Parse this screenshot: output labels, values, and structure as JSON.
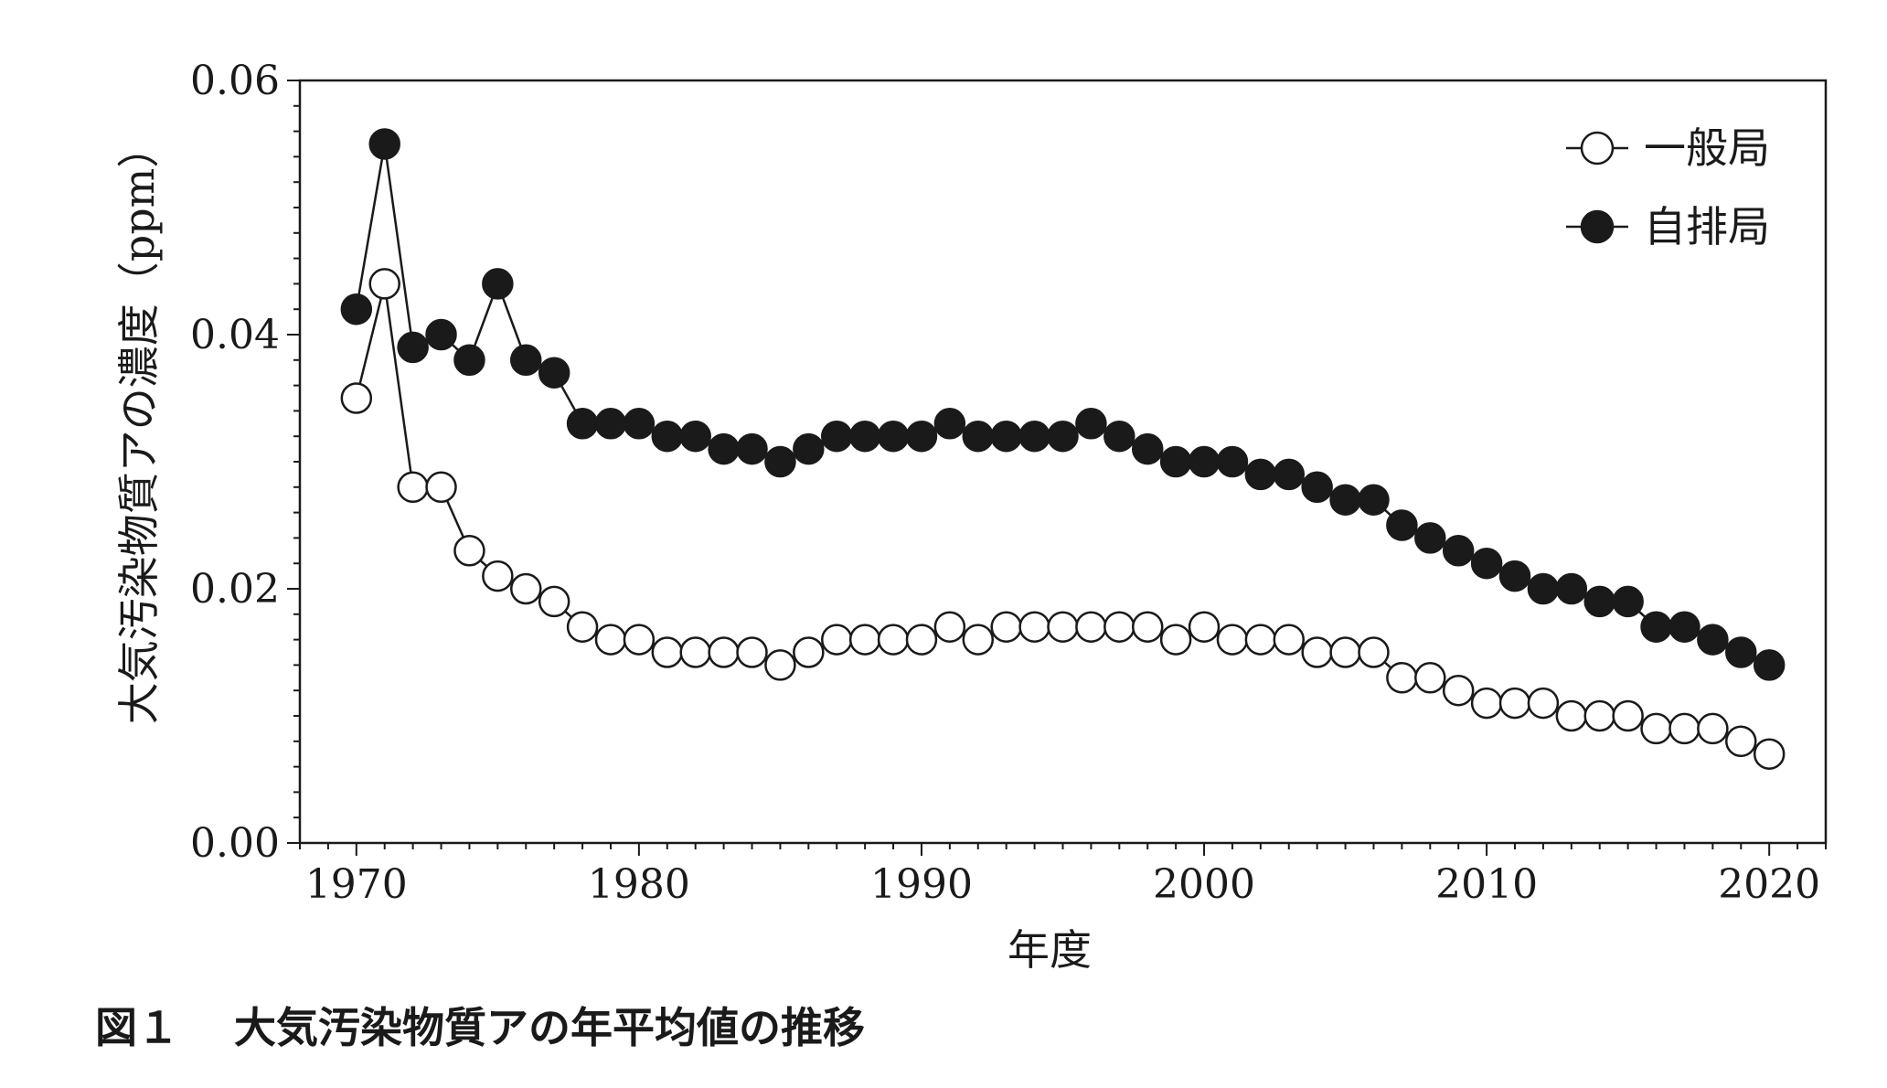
{
  "chart_data": {
    "type": "line",
    "xlabel": "年度",
    "ylabel": "大気汚染物質アの濃度（ppm）",
    "xlim": [
      1968,
      2022
    ],
    "ylim": [
      0.0,
      0.06
    ],
    "x_ticks": [
      1970,
      1980,
      1990,
      2000,
      2010,
      2020
    ],
    "y_ticks": [
      "0.00",
      "0.02",
      "0.04",
      "0.06"
    ],
    "grid": false,
    "legend_position": "top-right",
    "x": [
      1970,
      1971,
      1972,
      1973,
      1974,
      1975,
      1976,
      1977,
      1978,
      1979,
      1980,
      1981,
      1982,
      1983,
      1984,
      1985,
      1986,
      1987,
      1988,
      1989,
      1990,
      1991,
      1992,
      1993,
      1994,
      1995,
      1996,
      1997,
      1998,
      1999,
      2000,
      2001,
      2002,
      2003,
      2004,
      2005,
      2006,
      2007,
      2008,
      2009,
      2010,
      2011,
      2012,
      2013,
      2014,
      2015,
      2016,
      2017,
      2018,
      2019,
      2020
    ],
    "series": [
      {
        "name": "一般局",
        "marker": "open-circle",
        "color": "#1a1a1a",
        "fill": "#ffffff",
        "values": [
          0.035,
          0.044,
          0.028,
          0.028,
          0.023,
          0.021,
          0.02,
          0.019,
          0.017,
          0.016,
          0.016,
          0.015,
          0.015,
          0.015,
          0.015,
          0.014,
          0.015,
          0.016,
          0.016,
          0.016,
          0.016,
          0.017,
          0.016,
          0.017,
          0.017,
          0.017,
          0.017,
          0.017,
          0.017,
          0.016,
          0.017,
          0.016,
          0.016,
          0.016,
          0.015,
          0.015,
          0.015,
          0.013,
          0.013,
          0.012,
          0.011,
          0.011,
          0.011,
          0.01,
          0.01,
          0.01,
          0.009,
          0.009,
          0.009,
          0.008,
          0.007
        ]
      },
      {
        "name": "自排局",
        "marker": "filled-circle",
        "color": "#1a1a1a",
        "fill": "#1a1a1a",
        "values": [
          0.042,
          0.055,
          0.039,
          0.04,
          0.038,
          0.044,
          0.038,
          0.037,
          0.033,
          0.033,
          0.033,
          0.032,
          0.032,
          0.031,
          0.031,
          0.03,
          0.031,
          0.032,
          0.032,
          0.032,
          0.032,
          0.033,
          0.032,
          0.032,
          0.032,
          0.032,
          0.033,
          0.032,
          0.031,
          0.03,
          0.03,
          0.03,
          0.029,
          0.029,
          0.028,
          0.027,
          0.027,
          0.025,
          0.024,
          0.023,
          0.022,
          0.021,
          0.02,
          0.02,
          0.019,
          0.019,
          0.017,
          0.017,
          0.016,
          0.015,
          0.014
        ]
      }
    ]
  },
  "caption": {
    "number": "図１",
    "text": "大気汚染物質アの年平均値の推移"
  }
}
